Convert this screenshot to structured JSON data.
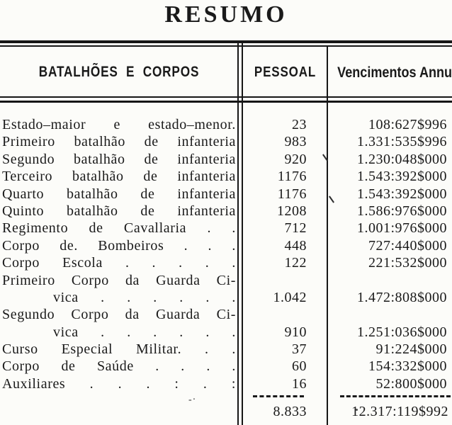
{
  "page": {
    "title": "RESUMO"
  },
  "colors": {
    "ink": "#1a1a1a",
    "paper": "#fcfcf9"
  },
  "table": {
    "headers": {
      "col1": "BATALHÕES E CORPOS",
      "col2": "PESSOAL",
      "col3": "Vencimentos Annuaes"
    },
    "lines": [
      {
        "c1": "Estado–maior e estado–menor.",
        "c2": "23",
        "c3": "108:627$996"
      },
      {
        "c1": "Primeiro batalhão de infanteria",
        "c2": "983",
        "c3": "1.331:535$996"
      },
      {
        "c1": "Segundo batalhão de infanteria",
        "c2": "920",
        "c3": "1.230:048$000"
      },
      {
        "c1": "Terceiro batalhão de infanteria",
        "c2": "1176",
        "c3": "1.543:392$000"
      },
      {
        "c1": "Quarto batalhão de infanteria",
        "c2": "1176",
        "c3": "1.543:392$000"
      },
      {
        "c1": "Quinto batalhão de infanteria",
        "c2": "1208",
        "c3": "1.586:976$000"
      },
      {
        "c1": "Regimento de Cavallaria . .",
        "c2": "712",
        "c3": "1.001:976$000"
      },
      {
        "c1": "Corpo de. Bombeiros . . .",
        "c2": "448",
        "c3": "727:440$000"
      },
      {
        "c1": "Corpo Escola . . . . .",
        "c2": "122",
        "c3": "221:532$000"
      },
      {
        "c1": "Primeiro Corpo da Guarda Ci-",
        "c2": "",
        "c3": ""
      },
      {
        "c1": "vica . . . . . .",
        "c2": "1.042",
        "c3": "1.472:808$000"
      },
      {
        "c1": "Segundo Corpo da Guarda Ci-",
        "c2": "",
        "c3": ""
      },
      {
        "c1": "vica . . . . . .",
        "c2": "910",
        "c3": "1.251:036$000"
      },
      {
        "c1": "Curso Especial Militar. . .",
        "c2": "37",
        "c3": "91:224$000"
      },
      {
        "c1": "Corpo de Saúde . . . .",
        "c2": "60",
        "c3": "154:332$000"
      },
      {
        "c1": "Auxiliares . . . : . :",
        "c2": "16",
        "c3": "52:800$000"
      }
    ],
    "totals": {
      "pessoal": "8.833",
      "vencimentos": "12.317:119$992"
    }
  },
  "artifacts": {
    "dash_dot": "-·"
  }
}
